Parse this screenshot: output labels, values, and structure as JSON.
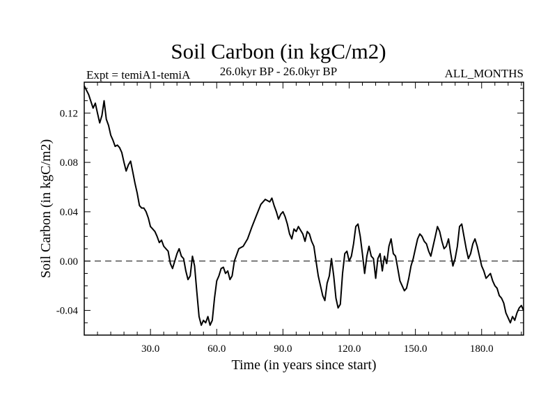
{
  "chart_data": {
    "type": "line",
    "title": "Soil Carbon (in kgC/m2)",
    "subtitle_left": "Expt = temiA1-temiA",
    "subtitle_center": "26.0kyr BP - 26.0kyr BP",
    "subtitle_right": "ALL_MONTHS",
    "xlabel": "Time (in years since start)",
    "ylabel": "Soil Carbon (in kgC/m2)",
    "xlim": [
      0,
      199
    ],
    "ylim": [
      -0.06,
      0.145
    ],
    "xticks": [
      "30.0",
      "60.0",
      "90.0",
      "120.0",
      "150.0",
      "180.0"
    ],
    "xtick_values": [
      30,
      60,
      90,
      120,
      150,
      180
    ],
    "yticks": [
      "-0.04",
      "0.00",
      "0.04",
      "0.08",
      "0.12"
    ],
    "ytick_values": [
      -0.04,
      0.0,
      0.04,
      0.08,
      0.12
    ],
    "reference_line": 0.0,
    "grid": false,
    "series": [
      {
        "x": [
          0,
          2,
          4,
          5,
          6,
          7,
          8,
          9,
          10,
          11,
          12,
          13,
          14,
          15,
          16,
          17,
          18,
          19,
          20,
          21,
          22,
          23,
          24,
          25,
          26,
          27,
          28,
          29,
          30,
          31,
          32,
          33,
          34,
          35,
          36,
          37,
          38,
          39,
          40,
          41,
          42,
          43,
          44,
          45,
          46,
          47,
          48,
          49,
          50,
          51,
          52,
          53,
          54,
          55,
          56,
          57,
          58,
          59,
          60,
          61,
          62,
          63,
          64,
          65,
          66,
          67,
          68,
          70,
          72,
          74,
          76,
          78,
          80,
          82,
          84,
          85,
          86,
          87,
          88,
          89,
          90,
          91,
          92,
          93,
          94,
          95,
          96,
          97,
          98,
          99,
          100,
          101,
          102,
          103,
          104,
          105,
          106,
          107,
          108,
          109,
          110,
          111,
          112,
          113,
          114,
          115,
          116,
          117,
          118,
          119,
          120,
          121,
          122,
          123,
          124,
          125,
          126,
          127,
          128,
          129,
          130,
          131,
          132,
          133,
          134,
          135,
          136,
          137,
          138,
          139,
          140,
          141,
          142,
          143,
          144,
          145,
          146,
          147,
          148,
          149,
          150,
          151,
          152,
          153,
          154,
          155,
          156,
          157,
          158,
          159,
          160,
          161,
          162,
          163,
          164,
          165,
          166,
          167,
          168,
          169,
          170,
          171,
          172,
          173,
          174,
          175,
          176,
          177,
          178,
          179,
          180,
          181,
          182,
          183,
          184,
          185,
          186,
          187,
          188,
          189,
          190,
          191,
          192,
          193,
          194,
          195,
          196,
          197,
          198,
          199
        ],
        "y": [
          0.142,
          0.135,
          0.124,
          0.128,
          0.12,
          0.112,
          0.118,
          0.13,
          0.115,
          0.11,
          0.102,
          0.098,
          0.093,
          0.094,
          0.092,
          0.088,
          0.08,
          0.073,
          0.078,
          0.081,
          0.072,
          0.063,
          0.055,
          0.045,
          0.043,
          0.043,
          0.04,
          0.035,
          0.028,
          0.026,
          0.024,
          0.02,
          0.015,
          0.017,
          0.012,
          0.01,
          0.008,
          -0.002,
          -0.006,
          0.0,
          0.006,
          0.01,
          0.004,
          0.002,
          -0.008,
          -0.015,
          -0.012,
          0.004,
          -0.004,
          -0.025,
          -0.045,
          -0.052,
          -0.048,
          -0.05,
          -0.045,
          -0.052,
          -0.048,
          -0.03,
          -0.016,
          -0.012,
          -0.006,
          -0.005,
          -0.01,
          -0.008,
          -0.015,
          -0.012,
          0.0,
          0.01,
          0.012,
          0.018,
          0.028,
          0.037,
          0.046,
          0.05,
          0.048,
          0.051,
          0.045,
          0.04,
          0.034,
          0.038,
          0.04,
          0.036,
          0.03,
          0.022,
          0.018,
          0.026,
          0.024,
          0.028,
          0.025,
          0.022,
          0.016,
          0.024,
          0.022,
          0.016,
          0.012,
          0.0,
          -0.012,
          -0.02,
          -0.028,
          -0.032,
          -0.018,
          -0.012,
          0.002,
          -0.012,
          -0.03,
          -0.038,
          -0.035,
          -0.01,
          0.006,
          0.008,
          0.0,
          0.004,
          0.014,
          0.028,
          0.03,
          0.02,
          0.006,
          -0.01,
          0.004,
          0.012,
          0.004,
          0.002,
          -0.014,
          0.002,
          0.006,
          -0.008,
          0.004,
          -0.002,
          0.012,
          0.018,
          0.006,
          0.004,
          -0.006,
          -0.016,
          -0.02,
          -0.024,
          -0.022,
          -0.014,
          -0.004,
          0.002,
          0.01,
          0.018,
          0.022,
          0.02,
          0.016,
          0.014,
          0.008,
          0.004,
          0.012,
          0.02,
          0.028,
          0.024,
          0.016,
          0.01,
          0.012,
          0.018,
          0.006,
          -0.004,
          0.002,
          0.012,
          0.028,
          0.03,
          0.02,
          0.01,
          0.002,
          0.006,
          0.014,
          0.018,
          0.012,
          0.004,
          -0.004,
          -0.008,
          -0.014,
          -0.012,
          -0.01,
          -0.016,
          -0.02,
          -0.022,
          -0.028,
          -0.03,
          -0.034,
          -0.042,
          -0.046,
          -0.05,
          -0.045,
          -0.048,
          -0.042,
          -0.038,
          -0.036,
          -0.04
        ]
      }
    ]
  }
}
